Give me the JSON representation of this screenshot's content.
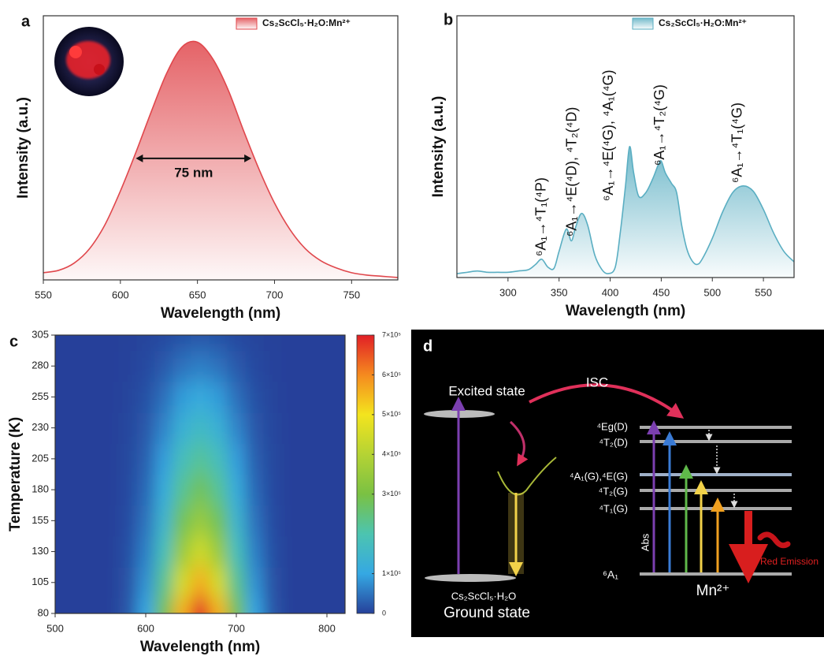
{
  "chart_data": [
    {
      "type": "line",
      "panel_label": "a",
      "x_label": "Wavelength (nm)",
      "y_label": "Intensity (a.u.)",
      "x": [
        550,
        560,
        570,
        580,
        590,
        600,
        610,
        620,
        630,
        640,
        650,
        660,
        670,
        680,
        690,
        700,
        710,
        720,
        730,
        740,
        750,
        760,
        770,
        780
      ],
      "series": [
        {
          "name": "Cs₂ScCl₅·H₂O:Mn²⁺",
          "color": "#e0474c",
          "values": [
            0.03,
            0.04,
            0.07,
            0.13,
            0.23,
            0.37,
            0.53,
            0.7,
            0.86,
            0.97,
            0.99,
            0.92,
            0.79,
            0.62,
            0.46,
            0.32,
            0.21,
            0.13,
            0.08,
            0.05,
            0.03,
            0.02,
            0.015,
            0.01
          ]
        }
      ],
      "xlim": [
        550,
        780
      ],
      "xticks": [
        550,
        600,
        650,
        700,
        750
      ],
      "ylim": [
        0,
        1.1
      ],
      "legend": "upper right",
      "annotations": [
        {
          "text": "75 nm",
          "x": [
            610,
            685
          ]
        }
      ]
    },
    {
      "type": "line",
      "panel_label": "b",
      "x_label": "Wavelength (nm)",
      "y_label": "Intensity (a.u.)",
      "x": [
        250,
        260,
        270,
        280,
        290,
        300,
        310,
        320,
        327,
        333,
        339,
        345,
        350,
        357,
        362,
        366,
        372,
        378,
        385,
        392,
        398,
        405,
        410,
        415,
        419,
        423,
        428,
        435,
        442,
        447,
        450,
        454,
        460,
        465,
        470,
        475,
        480,
        485,
        490,
        500,
        510,
        520,
        530,
        540,
        550,
        560,
        570,
        580
      ],
      "series": [
        {
          "name": "Cs₂ScCl₅·H₂O:Mn²⁺",
          "color": "#5aaec2",
          "values": [
            0.03,
            0.04,
            0.05,
            0.04,
            0.04,
            0.04,
            0.05,
            0.06,
            0.1,
            0.14,
            0.08,
            0.07,
            0.2,
            0.37,
            0.28,
            0.38,
            0.49,
            0.4,
            0.17,
            0.06,
            0.03,
            0.08,
            0.35,
            0.7,
            1.0,
            0.8,
            0.62,
            0.65,
            0.76,
            0.86,
            0.89,
            0.8,
            0.72,
            0.65,
            0.4,
            0.22,
            0.13,
            0.1,
            0.14,
            0.3,
            0.5,
            0.65,
            0.7,
            0.66,
            0.52,
            0.34,
            0.2,
            0.12
          ]
        }
      ],
      "xlim": [
        250,
        580
      ],
      "xticks": [
        300,
        350,
        400,
        450,
        500,
        550
      ],
      "ylim": [
        0,
        2
      ],
      "legend": "upper right",
      "annotations": [
        {
          "text": "⁶A₁→⁴T₁(⁴P)",
          "x": 333
        },
        {
          "text": "⁶A₁→⁴E(⁴D), ⁴T₂(⁴D)",
          "x": 363
        },
        {
          "text": "⁶A₁→⁴E(⁴G), ⁴A₁(⁴G)",
          "x": 399
        },
        {
          "text": "⁶A₁→⁴T₂(⁴G)",
          "x": 449
        },
        {
          "text": "⁶A₁→⁴T₁(⁴G)",
          "x": 525
        }
      ]
    },
    {
      "type": "heatmap",
      "panel_label": "c",
      "x_label": "Wavelength (nm)",
      "y_label": "Temperature (K)",
      "x": [
        500,
        520,
        540,
        560,
        580,
        600,
        620,
        640,
        660,
        680,
        700,
        720,
        740,
        760,
        780,
        800,
        820
      ],
      "y": [
        80,
        105,
        130,
        155,
        180,
        205,
        230,
        255,
        280,
        305
      ],
      "z": [
        [
          0,
          0,
          0,
          0,
          21000,
          98000,
          287000,
          560000,
          700000,
          560000,
          287000,
          98000,
          21000,
          0,
          0,
          0,
          0
        ],
        [
          0,
          0,
          0,
          0,
          16800,
          78400,
          229600,
          448000,
          560000,
          448000,
          229600,
          78400,
          16800,
          0,
          0,
          0,
          0
        ],
        [
          0,
          0,
          0,
          0,
          13200,
          61600,
          180400,
          352000,
          440000,
          352000,
          180400,
          61600,
          13200,
          0,
          0,
          0,
          0
        ],
        [
          0,
          0,
          0,
          0,
          10500,
          49000,
          143500,
          280000,
          350000,
          280000,
          143500,
          49000,
          10500,
          0,
          0,
          0,
          0
        ],
        [
          0,
          0,
          0,
          0,
          8400,
          39200,
          114800,
          224000,
          280000,
          224000,
          114800,
          39200,
          8400,
          0,
          0,
          0,
          0
        ],
        [
          0,
          0,
          0,
          0,
          6600,
          30800,
          90200,
          176000,
          220000,
          176000,
          90200,
          30800,
          6600,
          0,
          0,
          0,
          0
        ],
        [
          0,
          0,
          0,
          0,
          4800,
          22400,
          65600,
          128000,
          160000,
          128000,
          65600,
          22400,
          4800,
          0,
          0,
          0,
          0
        ],
        [
          0,
          0,
          0,
          0,
          3300,
          15400,
          45100,
          88000,
          110000,
          88000,
          45100,
          15400,
          3300,
          0,
          0,
          0,
          0
        ],
        [
          0,
          0,
          0,
          0,
          1800,
          8400,
          24600,
          48000,
          60000,
          48000,
          24600,
          8400,
          1800,
          0,
          0,
          0,
          0
        ],
        [
          0,
          0,
          0,
          0,
          600,
          2800,
          8200,
          16000,
          20000,
          16000,
          8200,
          2800,
          600,
          0,
          0,
          0,
          0
        ]
      ],
      "xlim": [
        500,
        820
      ],
      "xticks": [
        500,
        600,
        700,
        800
      ],
      "ylim": [
        80,
        305
      ],
      "yticks": [
        80,
        105,
        130,
        155,
        180,
        205,
        230,
        255,
        280,
        305
      ],
      "zlim": [
        0,
        700000
      ],
      "zticks": [
        0,
        {
          "value": 100000,
          "label": "1×10⁵"
        },
        {
          "value": 300000,
          "label": "3×10⁵"
        },
        {
          "value": 400000,
          "label": "4×10⁵"
        },
        {
          "value": 500000,
          "label": "5×10⁵"
        },
        {
          "value": 600000,
          "label": "6×10⁵"
        },
        {
          "value": 700000,
          "label": "7×10⁵"
        }
      ],
      "colormap": [
        "#26419a",
        "#35a8e3",
        "#4cc4b0",
        "#7ac143",
        "#b5d334",
        "#f3e41e",
        "#f58a1f",
        "#e11f26"
      ]
    }
  ],
  "diagram": {
    "panel_label": "d",
    "excited_state": "Excited state",
    "isc": "ISC",
    "host": "Cs₂ScCl₅·H₂O",
    "ground_state": "Ground state",
    "levels": [
      "⁴Eg(D)",
      "⁴T₂(D)",
      "⁴A₁(G),⁴E(G)",
      "⁴T₂(G)",
      "⁴T₁(G)",
      "⁶A₁"
    ],
    "abs": "Abs",
    "red_emission": "Red Emission",
    "ion": "Mn²⁺"
  }
}
